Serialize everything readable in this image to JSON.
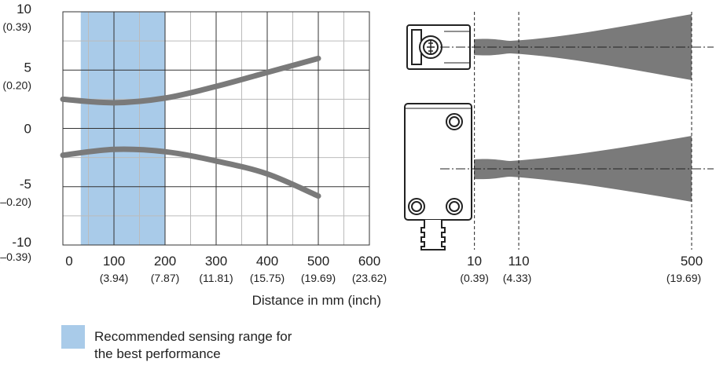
{
  "chart_data": {
    "type": "line",
    "x": [
      0,
      100,
      200,
      300,
      400,
      500
    ],
    "series": [
      {
        "color": "#7a7a7a",
        "values": [
          2.5,
          2.2,
          2.6,
          3.6,
          4.8,
          6.0
        ]
      },
      {
        "color": "#7a7a7a",
        "values": [
          -2.3,
          -1.8,
          -2.0,
          -2.8,
          -3.9,
          -5.8
        ]
      }
    ],
    "xlim": [
      0,
      600
    ],
    "ylim": [
      -10,
      10
    ],
    "xticks": [
      0,
      100,
      200,
      300,
      400,
      500,
      600
    ],
    "xtick_sublabels": [
      null,
      "(3.94)",
      "(7.87)",
      "(11.81)",
      "(15.75)",
      "(19.69)",
      "(23.62)"
    ],
    "yticks": [
      -10,
      -5,
      0,
      5,
      10
    ],
    "ytick_sublabels": [
      "(–0.39)",
      "(–0.20)",
      null,
      "(0.20)",
      "(0.39)"
    ],
    "xlabel": "Distance in mm (inch)",
    "grid": true,
    "highlight": {
      "x": [
        35,
        200
      ],
      "color": "#a9cbe9",
      "label": "Recommended sensing range for the best performance"
    }
  },
  "beam_diagram": {
    "distances": [
      {
        "value": 10,
        "label": "10",
        "sublabel": "(0.39)"
      },
      {
        "value": 110,
        "label": "110",
        "sublabel": "(4.33)"
      },
      {
        "value": 500,
        "label": "500",
        "sublabel": "(19.69)"
      }
    ]
  }
}
